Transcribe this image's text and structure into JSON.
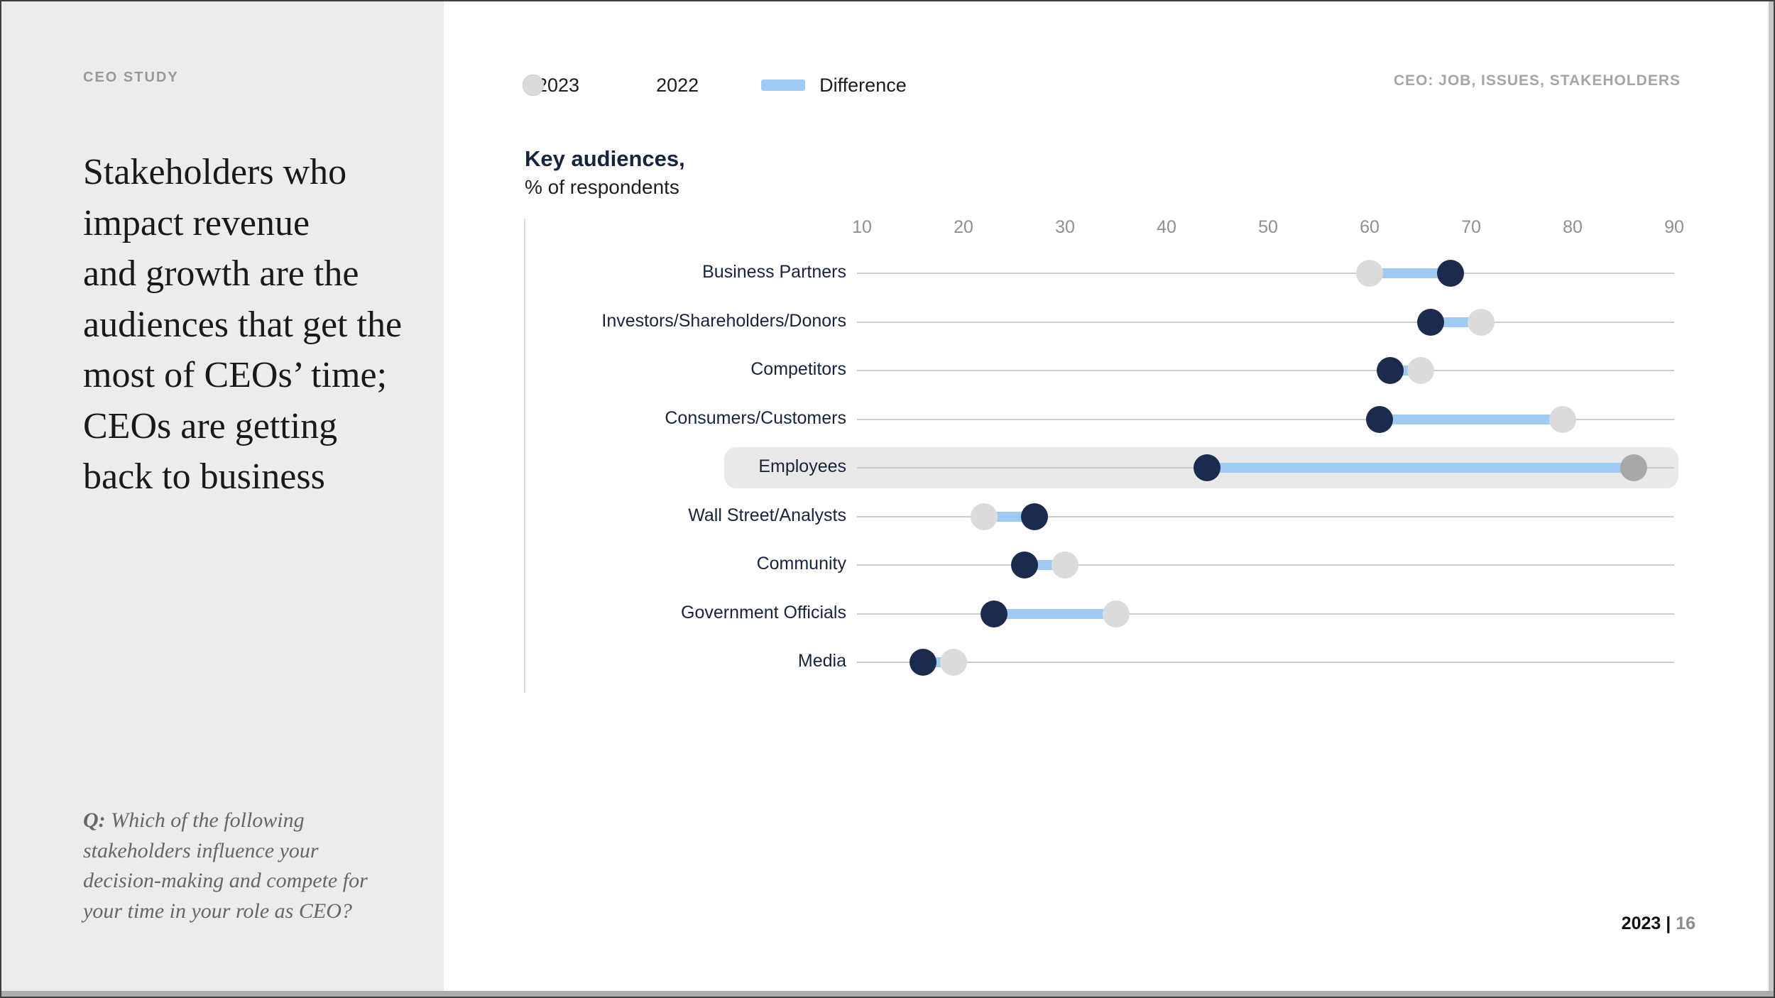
{
  "slide": {
    "eyebrow": "CEO STUDY",
    "headline": "Stakeholders who\nimpact revenue\nand growth are the\naudiences that get the\nmost of CEOs’ time;\nCEOs are getting\nback to business",
    "question_prefix": "Q:",
    "question_text": " Which of the following\nstakeholders influence your\ndecision-making and compete for\nyour time in your role as CEO?",
    "header_right": "CEO: JOB, ISSUES, STAKEHOLDERS",
    "footer": {
      "year": "2023",
      "separator": " | ",
      "page": "16"
    }
  },
  "legend": [
    {
      "label": "2023",
      "swatch": "dot"
    },
    {
      "label": "2022",
      "swatch": "dot"
    },
    {
      "label": "Difference",
      "swatch": "bar"
    }
  ],
  "chart_data": {
    "type": "dumbbell",
    "title": "Key audiences,",
    "subtitle": "% of respondents",
    "xlabel": "",
    "ylabel": "",
    "x_axis": {
      "min": 10,
      "max": 90,
      "ticks": [
        10,
        20,
        30,
        40,
        50,
        60,
        70,
        80,
        90
      ]
    },
    "series_names": [
      "2023",
      "2022"
    ],
    "categories": [
      "Business Partners",
      "Investors/Shareholders/Donors",
      "Competitors",
      "Consumers/Customers",
      "Employees",
      "Wall Street/Analysts",
      "Community",
      "Government Officials",
      "Media"
    ],
    "rows": [
      {
        "label": "Business Partners",
        "v2023": 68,
        "v2022": 60,
        "highlight": false
      },
      {
        "label": "Investors/Shareholders/Donors",
        "v2023": 66,
        "v2022": 71,
        "highlight": false
      },
      {
        "label": "Competitors",
        "v2023": 62,
        "v2022": 65,
        "highlight": false
      },
      {
        "label": "Consumers/Customers",
        "v2023": 61,
        "v2022": 79,
        "highlight": false
      },
      {
        "label": "Employees",
        "v2023": 44,
        "v2022": 86,
        "highlight": true
      },
      {
        "label": "Wall Street/Analysts",
        "v2023": 27,
        "v2022": 22,
        "highlight": false
      },
      {
        "label": "Community",
        "v2023": 26,
        "v2022": 30,
        "highlight": false
      },
      {
        "label": "Government Officials",
        "v2023": 23,
        "v2022": 35,
        "highlight": false
      },
      {
        "label": "Media",
        "v2023": 16,
        "v2022": 19,
        "highlight": false
      }
    ],
    "legend_position": "top",
    "grid": "horizontal-row-lines"
  },
  "colors": {
    "navy_2023": "#1B2B4D",
    "gray_2022": "#DBDBDB",
    "gray_2022_on_highlight": "#A8A8A8",
    "difference_blue": "#9FCBF2",
    "row_line": "#CCCCCC",
    "axis_line": "#DADADA",
    "tick_text": "#8F8F8F",
    "label_text": "#16243D",
    "highlight_band": "#E9E9E9",
    "panel_bg": "#ECECEA",
    "eyebrow_text": "#97999B",
    "header_right_text": "#A5A5A5",
    "question_text": "#63666B",
    "footer_page_text": "#8C8C8C"
  }
}
